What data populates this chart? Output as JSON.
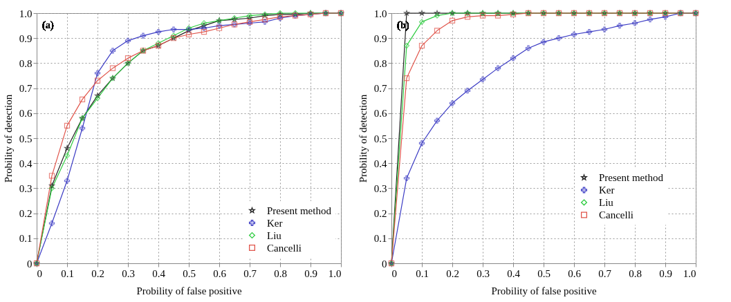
{
  "chart_data": [
    {
      "type": "line",
      "annotations": [
        "(a)"
      ],
      "xlabel": "Probility of false positive",
      "ylabel": "Probility of detection",
      "xlim": [
        0,
        1
      ],
      "ylim": [
        0,
        1
      ],
      "xticks": [
        0,
        0.1,
        0.2,
        0.3,
        0.4,
        0.5,
        0.6,
        0.7,
        0.8,
        0.9,
        {
          "value": 1,
          "label": "1.0"
        }
      ],
      "yticks": [
        0,
        0.1,
        0.2,
        0.3,
        0.4,
        0.5,
        0.6,
        0.7,
        0.8,
        0.9,
        {
          "value": 1,
          "label": "1.0"
        }
      ],
      "grid": true,
      "legend": "bottom right",
      "x": [
        0,
        0.05,
        0.1,
        0.15,
        0.2,
        0.25,
        0.3,
        0.35,
        0.4,
        0.45,
        0.5,
        0.55,
        0.6,
        0.65,
        0.7,
        0.75,
        0.8,
        0.85,
        0.9,
        0.95,
        1
      ],
      "series": [
        {
          "name": "Present method",
          "color": "#222222",
          "marker": "star",
          "values": [
            0,
            0.31,
            0.46,
            0.58,
            0.67,
            0.74,
            0.8,
            0.85,
            0.87,
            0.9,
            0.93,
            0.95,
            0.97,
            0.975,
            0.98,
            0.99,
            0.995,
            0.995,
            1,
            1,
            1
          ]
        },
        {
          "name": "Ker",
          "color": "#3b3bc4",
          "marker": "cross",
          "values": [
            0,
            0.16,
            0.33,
            0.54,
            0.76,
            0.85,
            0.89,
            0.91,
            0.925,
            0.935,
            0.935,
            0.94,
            0.95,
            0.955,
            0.96,
            0.965,
            0.98,
            0.99,
            0.995,
            1,
            1
          ]
        },
        {
          "name": "Liu",
          "color": "#2ecc40",
          "marker": "diamond",
          "values": [
            0,
            0.3,
            0.43,
            0.58,
            0.66,
            0.74,
            0.8,
            0.85,
            0.88,
            0.91,
            0.94,
            0.96,
            0.97,
            0.98,
            0.99,
            0.995,
            1,
            1,
            1,
            1,
            1
          ]
        },
        {
          "name": "Cancelli",
          "color": "#e0544a",
          "marker": "square",
          "values": [
            0,
            0.35,
            0.55,
            0.655,
            0.73,
            0.78,
            0.82,
            0.85,
            0.87,
            0.9,
            0.915,
            0.925,
            0.94,
            0.955,
            0.965,
            0.975,
            0.985,
            0.99,
            0.995,
            1,
            1
          ]
        }
      ]
    },
    {
      "type": "line",
      "annotations": [
        "(b)"
      ],
      "xlabel": "Probility of false positive",
      "ylabel": "Probility of detection",
      "xlim": [
        0,
        1
      ],
      "ylim": [
        0,
        1
      ],
      "xticks": [
        0,
        0.1,
        0.2,
        0.3,
        0.4,
        0.5,
        0.6,
        0.7,
        0.8,
        0.9,
        {
          "value": 1,
          "label": "1.0"
        }
      ],
      "yticks": [
        0,
        0.1,
        0.2,
        0.3,
        0.4,
        0.5,
        0.6,
        0.7,
        0.8,
        0.9,
        {
          "value": 1,
          "label": "1.0"
        }
      ],
      "grid": true,
      "legend": "right",
      "x": [
        0,
        0.05,
        0.1,
        0.15,
        0.2,
        0.25,
        0.3,
        0.35,
        0.4,
        0.45,
        0.5,
        0.55,
        0.6,
        0.65,
        0.7,
        0.75,
        0.8,
        0.85,
        0.9,
        0.95,
        1
      ],
      "series": [
        {
          "name": "Present method",
          "color": "#222222",
          "marker": "star",
          "values": [
            0,
            1,
            1,
            1,
            1,
            1,
            1,
            1,
            1,
            1,
            1,
            1,
            1,
            1,
            1,
            1,
            1,
            1,
            1,
            1,
            1
          ]
        },
        {
          "name": "Ker",
          "color": "#3b3bc4",
          "marker": "cross",
          "values": [
            0,
            0.34,
            0.48,
            0.57,
            0.64,
            0.69,
            0.735,
            0.78,
            0.82,
            0.86,
            0.885,
            0.9,
            0.915,
            0.925,
            0.935,
            0.95,
            0.96,
            0.975,
            0.985,
            1,
            1
          ]
        },
        {
          "name": "Liu",
          "color": "#2ecc40",
          "marker": "diamond",
          "values": [
            0,
            0.87,
            0.965,
            0.99,
            1,
            1,
            1,
            1,
            1,
            1,
            1,
            1,
            1,
            1,
            1,
            1,
            1,
            1,
            1,
            1,
            1
          ]
        },
        {
          "name": "Cancelli",
          "color": "#e0544a",
          "marker": "square",
          "values": [
            0,
            0.74,
            0.87,
            0.93,
            0.97,
            0.985,
            0.99,
            0.99,
            0.995,
            1,
            1,
            1,
            1,
            1,
            1,
            1,
            1,
            1,
            1,
            1,
            1
          ]
        }
      ]
    }
  ]
}
